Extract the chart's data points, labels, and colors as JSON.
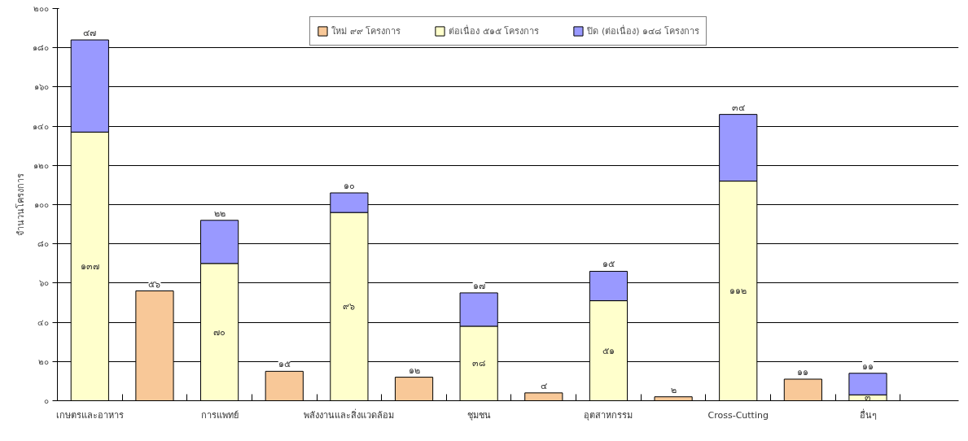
{
  "chart_data": {
    "type": "bar",
    "stacked": true,
    "ylabel": "จำนวนโครงการ",
    "categories": [
      "เกษตรและอาหาร",
      null,
      "การแพทย์",
      null,
      "พลังงานและสิ่งแวดล้อม",
      null,
      "ชุมชน",
      null,
      "อุตสาหกรรม",
      null,
      "Cross-Cutting",
      null,
      "อื่นๆ"
    ],
    "series": [
      {
        "name": "ใหม่ ๙๙ โครงการ",
        "color": "#f8c898",
        "values": [
          null,
          56,
          null,
          15,
          null,
          12,
          null,
          4,
          null,
          2,
          null,
          11,
          null
        ],
        "value_labels": [
          null,
          "๕๖",
          null,
          "๑๕",
          null,
          "๑๒",
          null,
          "๔",
          null,
          "๒",
          null,
          "๑๑",
          null
        ]
      },
      {
        "name": "ต่อเนื่อง ๕๑๕ โครงการ",
        "color": "#ffffcc",
        "values": [
          137,
          null,
          70,
          null,
          96,
          null,
          38,
          null,
          51,
          null,
          112,
          null,
          3
        ],
        "value_labels": [
          "๑๓๗",
          null,
          "๗๐",
          null,
          "๙๖",
          null,
          "๓๘",
          null,
          "๕๑",
          null,
          "๑๑๒",
          null,
          "๓"
        ]
      },
      {
        "name": "ปิด (ต่อเนื่อง) ๑๔๘ โครงการ",
        "color": "#9999ff",
        "values": [
          47,
          null,
          22,
          null,
          10,
          null,
          17,
          null,
          15,
          null,
          34,
          null,
          11
        ],
        "value_labels": [
          "๔๗",
          null,
          "๒๒",
          null,
          "๑๐",
          null,
          "๑๗",
          null,
          "๑๕",
          null,
          "๓๔",
          null,
          "๑๑"
        ]
      }
    ],
    "ylim": [
      0,
      200
    ],
    "yticks": [
      {
        "value": 0,
        "label": "๐"
      },
      {
        "value": 20,
        "label": "๒๐"
      },
      {
        "value": 40,
        "label": "๔๐"
      },
      {
        "value": 60,
        "label": "๖๐"
      },
      {
        "value": 80,
        "label": "๘๐"
      },
      {
        "value": 100,
        "label": "๑๐๐"
      },
      {
        "value": 120,
        "label": "๑๒๐"
      },
      {
        "value": 140,
        "label": "๑๔๐"
      },
      {
        "value": 160,
        "label": "๑๖๐"
      },
      {
        "value": 180,
        "label": "๑๘๐"
      },
      {
        "value": 200,
        "label": "๒๐๐"
      }
    ],
    "grid": "y",
    "legend": "top"
  }
}
